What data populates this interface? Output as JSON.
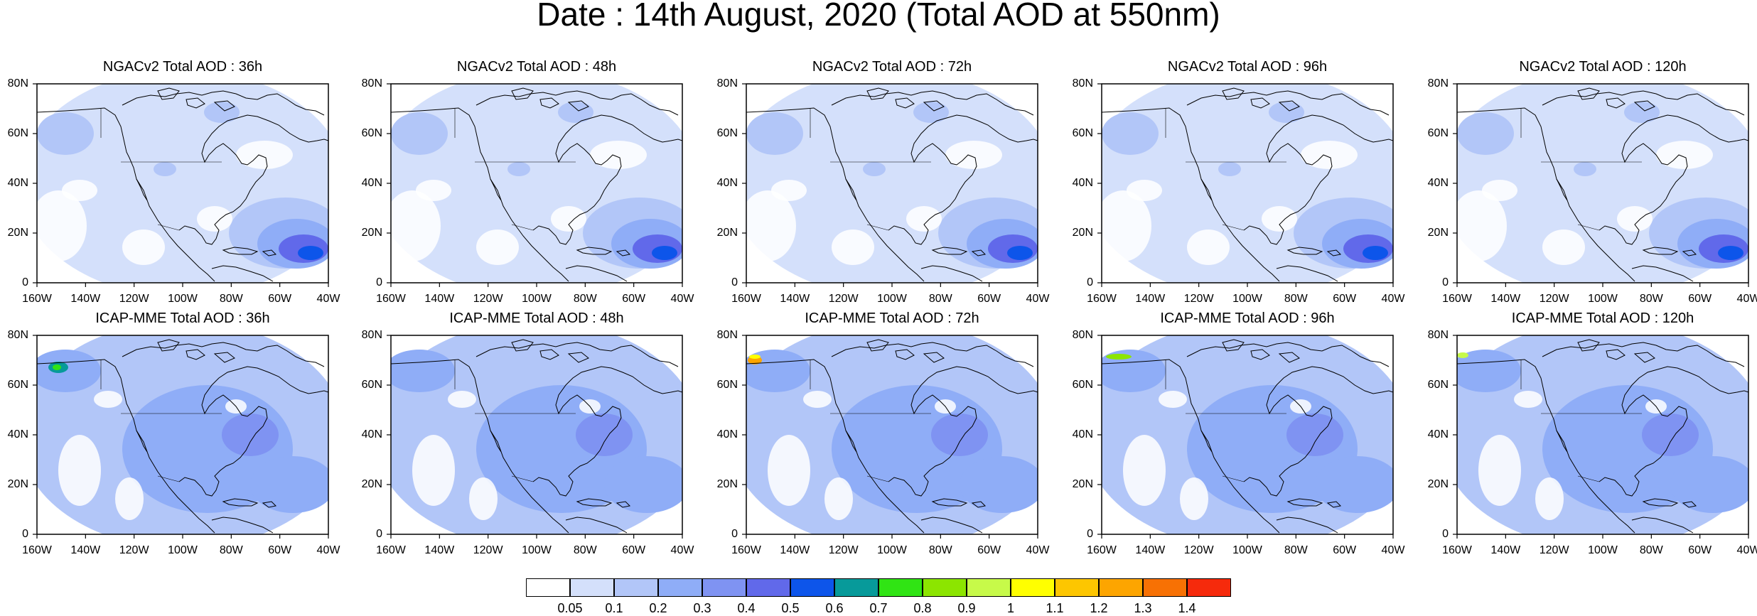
{
  "title": "Date : 14th August, 2020 (Total AOD at 550nm)",
  "lat_ticks": [
    "80N",
    "60N",
    "40N",
    "20N",
    "0"
  ],
  "lon_ticks": [
    "160W",
    "140W",
    "120W",
    "100W",
    "80W",
    "60W",
    "40W"
  ],
  "panels": [
    {
      "model": "NGACv2",
      "title": "NGACv2 Total AOD : 36h",
      "lead": "36h",
      "row": 0,
      "col": 0
    },
    {
      "model": "NGACv2",
      "title": "NGACv2 Total AOD : 48h",
      "lead": "48h",
      "row": 0,
      "col": 1
    },
    {
      "model": "NGACv2",
      "title": "NGACv2 Total AOD : 72h",
      "lead": "72h",
      "row": 0,
      "col": 2
    },
    {
      "model": "NGACv2",
      "title": "NGACv2 Total AOD : 96h",
      "lead": "96h",
      "row": 0,
      "col": 3
    },
    {
      "model": "NGACv2",
      "title": "NGACv2 Total AOD : 120h",
      "lead": "120h",
      "row": 0,
      "col": 4
    },
    {
      "model": "ICAP-MME",
      "title": "ICAP-MME Total AOD : 36h",
      "lead": "36h",
      "row": 1,
      "col": 0
    },
    {
      "model": "ICAP-MME",
      "title": "ICAP-MME Total AOD : 48h",
      "lead": "48h",
      "row": 1,
      "col": 1
    },
    {
      "model": "ICAP-MME",
      "title": "ICAP-MME Total AOD : 72h",
      "lead": "72h",
      "row": 1,
      "col": 2
    },
    {
      "model": "ICAP-MME",
      "title": "ICAP-MME Total AOD : 96h",
      "lead": "96h",
      "row": 1,
      "col": 3
    },
    {
      "model": "ICAP-MME",
      "title": "ICAP-MME Total AOD : 120h",
      "lead": "120h",
      "row": 1,
      "col": 4
    }
  ],
  "colorbar": {
    "labels": [
      "0.05",
      "0.1",
      "0.2",
      "0.3",
      "0.4",
      "0.5",
      "0.6",
      "0.7",
      "0.8",
      "0.9",
      "1",
      "1.1",
      "1.2",
      "1.3",
      "1.4"
    ],
    "colors": [
      "#ffffff",
      "#d4e0fb",
      "#b2c6f8",
      "#8fadf7",
      "#7f93f2",
      "#6169ea",
      "#0d55ea",
      "#079a9a",
      "#30e414",
      "#8ce500",
      "#c7fa49",
      "#ffff00",
      "#fdc600",
      "#fda500",
      "#f77104",
      "#f62a0c"
    ]
  }
}
